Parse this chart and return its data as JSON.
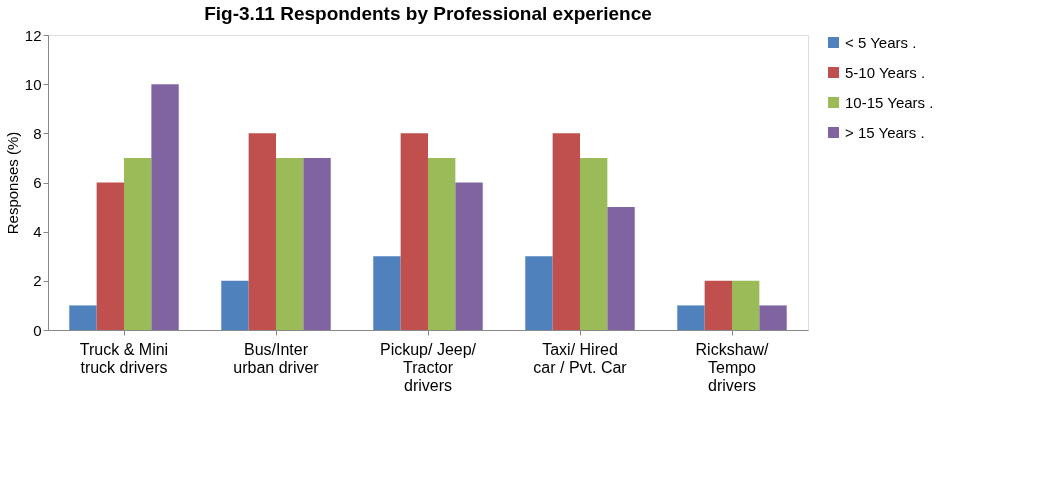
{
  "chart_data": {
    "type": "bar",
    "title": "Fig-3.11 Respondents by Professional  experience",
    "ylabel": "Responses (%)",
    "categories": [
      "Truck & Mini\ntruck drivers",
      "Bus/Inter\nurban driver",
      "Pickup/ Jeep/\nTractor\ndrivers",
      "Taxi/ Hired\ncar / Pvt. Car",
      "Rickshaw/\nTempo\ndrivers"
    ],
    "series": [
      {
        "name": "< 5 Years .",
        "color": "#4f81bd",
        "values": [
          1,
          2,
          3,
          3,
          1
        ]
      },
      {
        "name": "5-10 Years .",
        "color": "#c0504d",
        "values": [
          6,
          8,
          8,
          8,
          2
        ]
      },
      {
        "name": "10-15 Years .",
        "color": "#9bbb59",
        "values": [
          7,
          7,
          7,
          7,
          2
        ]
      },
      {
        "name": "> 15 Years .",
        "color": "#8064a2",
        "values": [
          10,
          7,
          6,
          5,
          1
        ]
      }
    ],
    "ylim": [
      0,
      12
    ],
    "yticks": [
      0,
      2,
      4,
      6,
      8,
      10,
      12
    ],
    "grid": false,
    "legend": "right"
  }
}
